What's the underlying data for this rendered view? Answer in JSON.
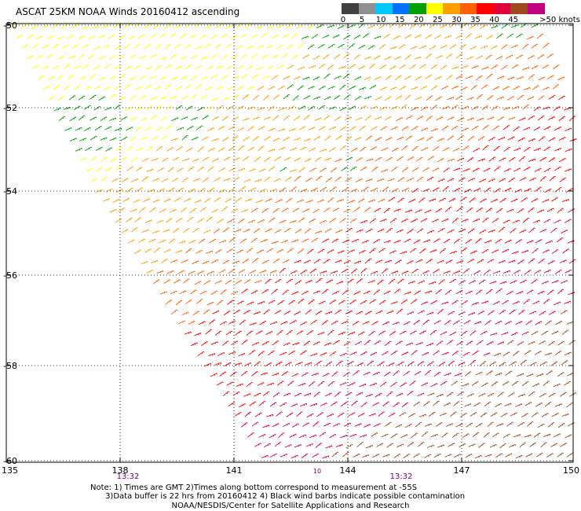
{
  "title": "ASCAT 25KM NOAA Winds 20160412 ascending",
  "colorbar": {
    "unit_label": ">50 knots",
    "ticks": [
      "0",
      "5",
      "10",
      "15",
      "20",
      "25",
      "30",
      "35",
      "40",
      "45"
    ],
    "colors": [
      "#404040",
      "#909090",
      "#00c8ff",
      "#0070ff",
      "#00a000",
      "#ffff00",
      "#ffa000",
      "#ff6000",
      "#ff0000",
      "#e0003c",
      "#a04820",
      "#c00080",
      "#500080"
    ]
  },
  "map": {
    "lat_labels": [
      "-50",
      "-52",
      "-54",
      "-56",
      "-58",
      "-60"
    ],
    "lon_labels": [
      "135",
      "138",
      "141",
      "144",
      "147",
      "150"
    ],
    "time_labels": [
      "13:32",
      "13:32"
    ],
    "time_color": "#800080",
    "small_time_label": "10"
  },
  "note": "Note: 1) Times are GMT 2)Times along bottom correspond to measurement at -55S\n      3)Data buffer is 22 hrs from 20160412 4) Black wind barbs indicate possible contamination",
  "credit": "NOAA/NESDIS/Center for Satellite Applications and Research"
}
